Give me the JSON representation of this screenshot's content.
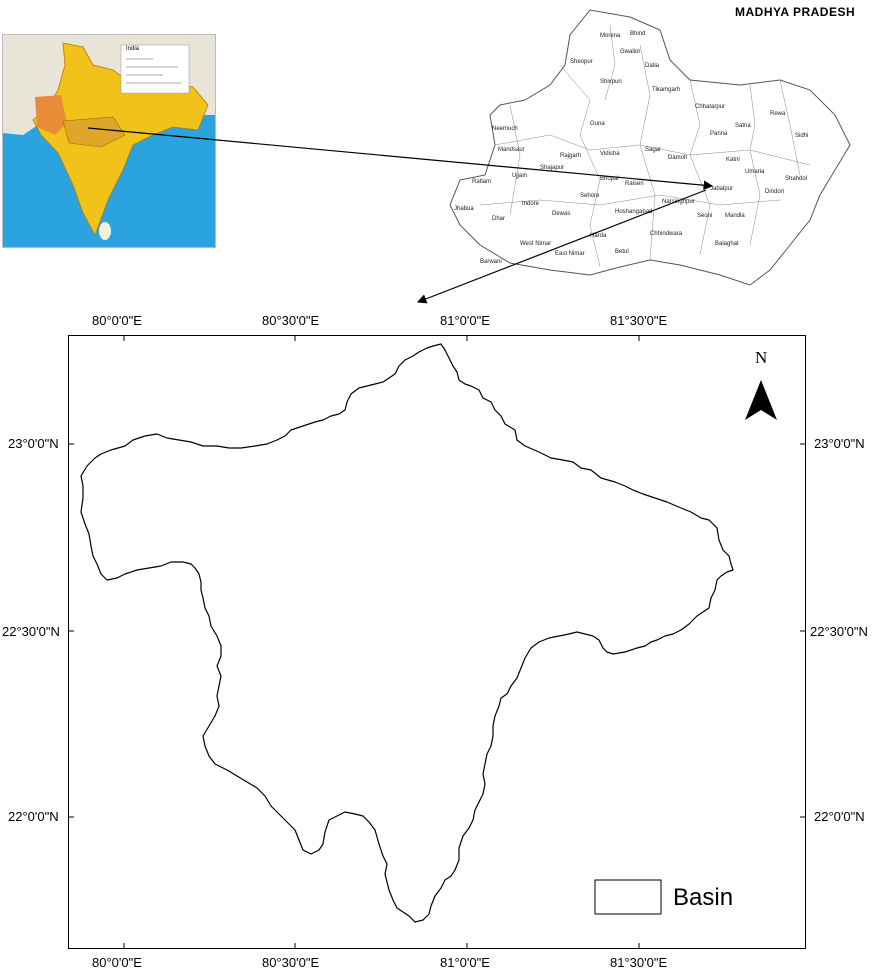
{
  "inset_india": {
    "legend_title": "India",
    "ocean_color": "#2aa3de",
    "land_color": "#f0c21a",
    "highlight_color": "#e98c3a",
    "neighbor_color": "#e8e4d8"
  },
  "inset_mp": {
    "title": "MADHYA PRADESH",
    "districts": [
      "Morena",
      "Bhind",
      "Sheopur",
      "Gwalior",
      "Datia",
      "Shivpuri",
      "Guna",
      "Tikamgarh",
      "Chhatarpur",
      "Rewa",
      "Sidhi",
      "Satna",
      "Panna",
      "Neemuch",
      "Mandsaur",
      "Rajgarh",
      "Vidisha",
      "Sagar",
      "Damoh",
      "Katni",
      "Umaria",
      "Ratlam",
      "Ujjain",
      "Shajapur",
      "Bhopal",
      "Raisen",
      "Jabalpur",
      "Shahdol",
      "Jhabua",
      "Dhar",
      "Indore",
      "Dewas",
      "Sehore",
      "Hoshangabad",
      "Narsinghpur",
      "Seoni",
      "Mandla",
      "Dindori",
      "Barwani",
      "West Nimar",
      "East Nimar",
      "Betul",
      "Chhindwara",
      "Balaghat",
      "Harda"
    ]
  },
  "map": {
    "feature_name": "Basin",
    "outline_color": "#000000",
    "north_label": "N",
    "lon_ticks": [
      "80°0'0\"E",
      "80°30'0\"E",
      "81°0'0\"E",
      "81°30'0\"E"
    ],
    "lat_ticks": [
      "23°0'0\"N",
      "22°30'0\"N",
      "22°0'0\"N"
    ]
  },
  "legend": {
    "label": "Basin"
  }
}
